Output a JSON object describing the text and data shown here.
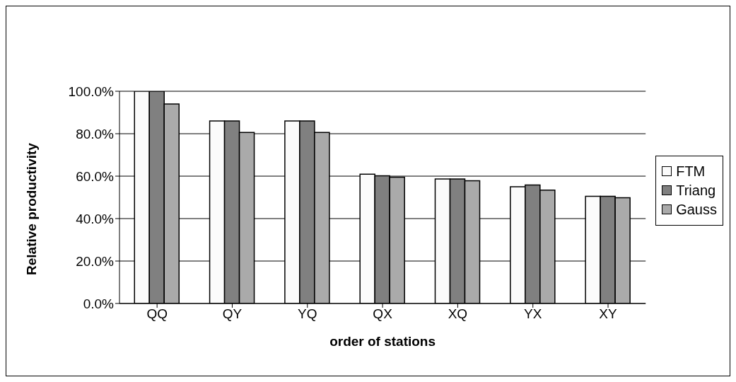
{
  "chart_data": {
    "type": "bar",
    "xlabel": "order of stations",
    "ylabel": "Relative productivity",
    "categories": [
      "QQ",
      "QY",
      "YQ",
      "QX",
      "XQ",
      "YX",
      "XY"
    ],
    "series": [
      {
        "name": "FTM",
        "color": "#fbfbfb",
        "values": [
          100,
          86,
          86,
          60.9,
          58.7,
          55,
          50.5
        ]
      },
      {
        "name": "Triang",
        "color": "#808080",
        "values": [
          100,
          86,
          86,
          60.2,
          58.7,
          55.8,
          50.5
        ]
      },
      {
        "name": "Gauss",
        "color": "#aaaaaa",
        "values": [
          94,
          80.6,
          80.6,
          59.5,
          57.8,
          53.4,
          49.8
        ]
      }
    ],
    "ylim": [
      0,
      100
    ],
    "yticks": [
      {
        "value": 0,
        "label": "0.0%"
      },
      {
        "value": 20,
        "label": "20.0%"
      },
      {
        "value": 40,
        "label": "40.0%"
      },
      {
        "value": 60,
        "label": "60.0%"
      },
      {
        "value": 80,
        "label": "80.0%"
      },
      {
        "value": 100,
        "label": "100.0%"
      }
    ],
    "grid": "y",
    "legend": "right"
  }
}
